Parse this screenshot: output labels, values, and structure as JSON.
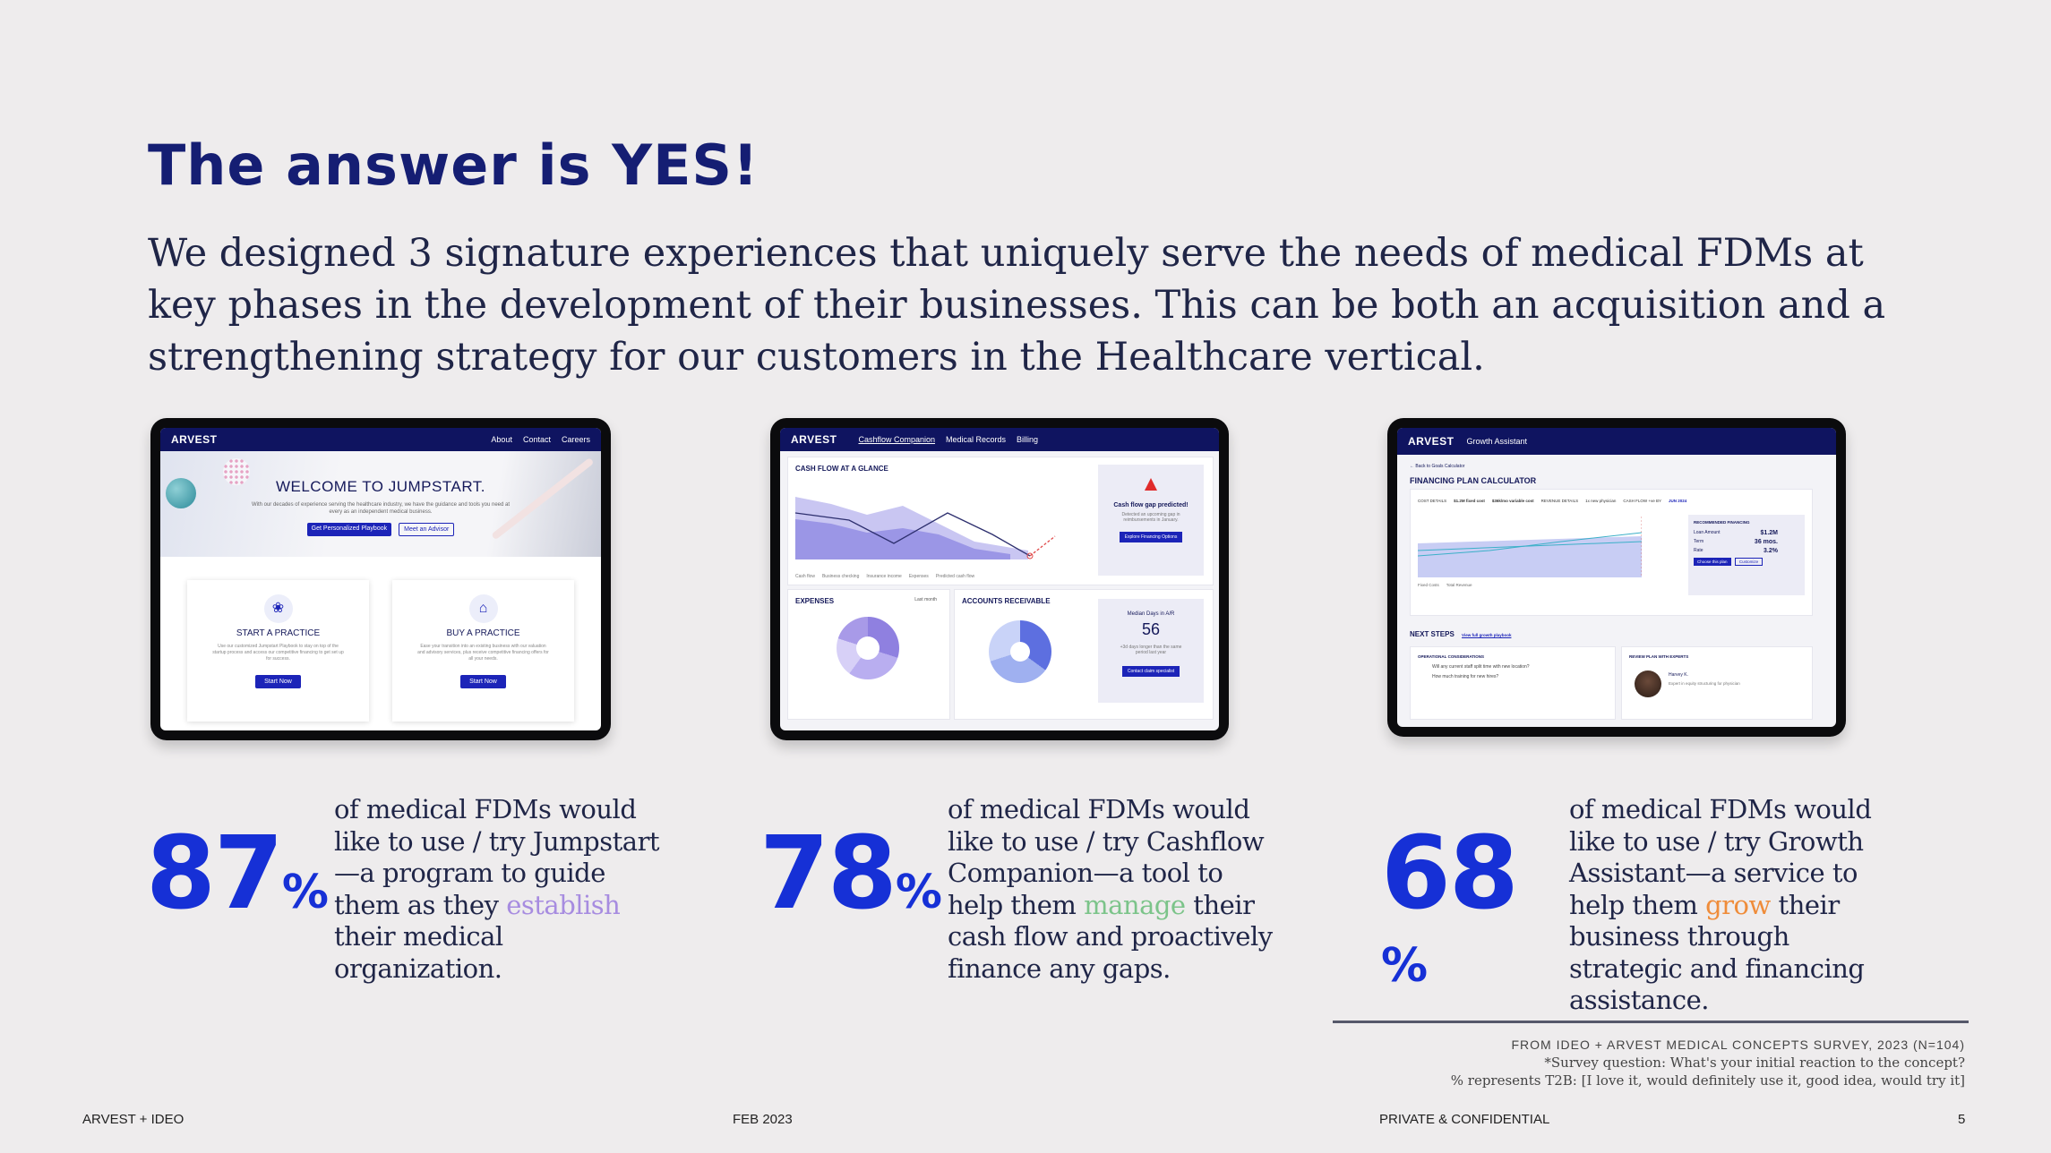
{
  "title": "The answer is YES!",
  "intro": "We designed 3 signature experiences that uniquely serve the needs of medical FDMs at key phases in the development of their businesses. This can be both an acquisition and a strengthening strategy for our customers in the Healthcare vertical.",
  "jumpstart": {
    "brand": "ARVEST",
    "nav": [
      "About",
      "Contact",
      "Careers"
    ],
    "hero_title": "WELCOME TO JUMPSTART.",
    "hero_text": "With our decades of experience serving the healthcare industry, we have the guidance and tools you need at every as an independent medical business.",
    "btn_primary": "Get Personalized Playbook",
    "btn_secondary": "Meet an Advisor",
    "cards": [
      {
        "title": "START A PRACTICE",
        "text": "Use our customized Jumpstart Playbook to stay on top of the startup process and access our competitive financing to get set up for success.",
        "button": "Start Now"
      },
      {
        "title": "BUY A PRACTICE",
        "text": "Ease your transition into an existing business with our valuation and advisory services, plus receive competitive financing offers for all your needs.",
        "button": "Start Now"
      }
    ]
  },
  "cashflow": {
    "brand": "ARVEST",
    "nav": [
      "Cashflow Companion",
      "Medical Records",
      "Billing"
    ],
    "glance_title": "CASH FLOW AT A GLANCE",
    "legend": [
      "Cash flow",
      "Business checking",
      "Insurance income",
      "Expenses",
      "Predicted cash flow"
    ],
    "alert_title": "Cash flow gap predicted!",
    "alert_text": "Detected an upcoming gap in reimbursements in January.",
    "alert_button": "Explore Financing Options",
    "expenses_title": "EXPENSES",
    "expenses_filter": "Last month",
    "ar_title": "ACCOUNTS RECEIVABLE",
    "median_title": "Median Days in A/R",
    "median_value": "56",
    "median_text": "+3d days longer than the same period last year",
    "median_button": "Contact claim specialist"
  },
  "growth": {
    "brand": "ARVEST",
    "nav": [
      "Growth Assistant"
    ],
    "back": "← Back to Goals Calculator",
    "calc_title": "FINANCING PLAN CALCULATOR",
    "cost_details": [
      "COST DETAILS",
      "$1.2M fixed cost",
      "$36k/mo variable cost",
      "REVENUE DETAILS",
      "1x new physician",
      "CASH FLOW +ve BY",
      "JUN 2024"
    ],
    "rec_title": "RECOMMENDED FINANCING",
    "rec_rows": [
      [
        "Loan Amount",
        "$1.2M"
      ],
      [
        "Term",
        "36 mos."
      ],
      [
        "Rate",
        "3.2%"
      ]
    ],
    "rec_buttons": [
      "Choose this plan",
      "Customize"
    ],
    "chart_legend": [
      "Fixed Costs",
      "Total Revenue"
    ],
    "next_steps": "NEXT STEPS",
    "next_link": "View full growth playbook",
    "op_title": "OPERATIONAL CONSIDERATIONS",
    "op_items": [
      "Will any current staff split time with new location?",
      "How much training for new hires?"
    ],
    "expert_title": "REVIEW PLAN WITH EXPERTS",
    "expert_name": "Harvey K.",
    "expert_text": "Expert in equity structuring for physician"
  },
  "stats": [
    {
      "number": "87",
      "unit": "%",
      "pre": "of medical FDMs would like to use / try Jumpstart—a program to guide them as they ",
      "highlight": "establish",
      "post": " their medical organization."
    },
    {
      "number": "78",
      "unit": "%",
      "pre": "of medical FDMs would like to use / try Cashflow Companion—a tool to help them ",
      "highlight": "manage",
      "post": " their cash flow and proactively finance any gaps."
    },
    {
      "number": "68",
      "unit": "%",
      "pre": "of medical FDMs would like to use / try Growth Assistant—a service to help them ",
      "highlight": "grow",
      "post": " their business through strategic and financing assistance."
    }
  ],
  "source": {
    "head": "FROM IDEO + ARVEST MEDICAL CONCEPTS SURVEY, 2023 (N=104)",
    "line1": "*Survey question: What's your initial reaction to the concept?",
    "line2": "% represents T2B: [I love it, would definitely use it, good idea, would try it]"
  },
  "footer": {
    "left": "ARVEST + IDEO",
    "date": "FEB 2023",
    "conf": "PRIVATE & CONFIDENTIAL",
    "page": "5"
  },
  "colors": {
    "navy": "#151e73",
    "stat_blue": "#1630d6",
    "establish": "#a78ce0",
    "manage": "#7cc48a",
    "grow": "#ef8c3a"
  }
}
